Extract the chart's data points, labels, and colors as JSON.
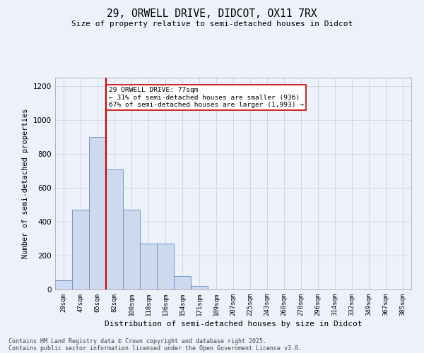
{
  "title1": "29, ORWELL DRIVE, DIDCOT, OX11 7RX",
  "title2": "Size of property relative to semi-detached houses in Didcot",
  "xlabel": "Distribution of semi-detached houses by size in Didcot",
  "ylabel": "Number of semi-detached properties",
  "categories": [
    "29sqm",
    "47sqm",
    "65sqm",
    "82sqm",
    "100sqm",
    "118sqm",
    "136sqm",
    "154sqm",
    "171sqm",
    "189sqm",
    "207sqm",
    "225sqm",
    "243sqm",
    "260sqm",
    "278sqm",
    "296sqm",
    "314sqm",
    "332sqm",
    "349sqm",
    "367sqm",
    "385sqm"
  ],
  "bar_heights": [
    55,
    470,
    900,
    710,
    470,
    270,
    270,
    80,
    20,
    0,
    0,
    0,
    0,
    0,
    0,
    0,
    0,
    0,
    0,
    0,
    0
  ],
  "bar_color": "#ccd9ee",
  "bar_edge_color": "#5b8ac7",
  "bar_width": 1.0,
  "property_line_x": 2.5,
  "red_line_color": "#cc0000",
  "annotation_text": "29 ORWELL DRIVE: 77sqm\n← 31% of semi-detached houses are smaller (936)\n67% of semi-detached houses are larger (1,993) →",
  "annotation_box_color": "#ffffff",
  "annotation_box_edge": "#cc0000",
  "ylim": [
    0,
    1250
  ],
  "yticks": [
    0,
    200,
    400,
    600,
    800,
    1000,
    1200
  ],
  "grid_color": "#c8d4e8",
  "footer1": "Contains HM Land Registry data © Crown copyright and database right 2025.",
  "footer2": "Contains public sector information licensed under the Open Government Licence v3.0.",
  "bg_color": "#edf1f9"
}
